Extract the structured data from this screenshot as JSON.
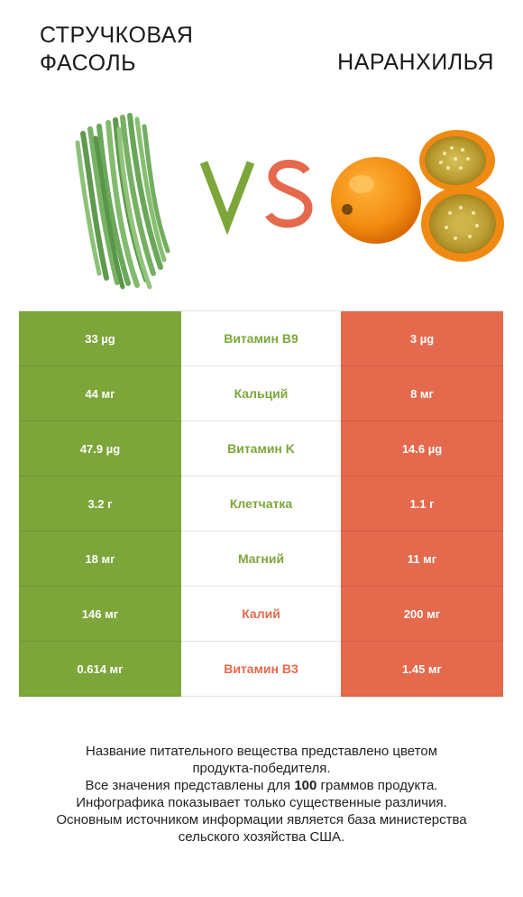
{
  "header": {
    "left_title_line1": "СТРУЧКОВАЯ",
    "left_title_line2": "ФАСОЛЬ",
    "right_title": "НАРАНХИЛЬЯ",
    "vs_label": "VS"
  },
  "colors": {
    "left_product": "#7da63a",
    "right_product": "#e5694c",
    "vs_v": "#7da63a",
    "vs_s": "#e5694c"
  },
  "rows": [
    {
      "left": "33 µg",
      "nutrient": "Витамин B9",
      "right": "3 µg",
      "winner": "left"
    },
    {
      "left": "44 мг",
      "nutrient": "Кальций",
      "right": "8 мг",
      "winner": "left"
    },
    {
      "left": "47.9 µg",
      "nutrient": "Витамин K",
      "right": "14.6 µg",
      "winner": "left"
    },
    {
      "left": "3.2 г",
      "nutrient": "Клетчатка",
      "right": "1.1 г",
      "winner": "left"
    },
    {
      "left": "18 мг",
      "nutrient": "Магний",
      "right": "11 мг",
      "winner": "left"
    },
    {
      "left": "146 мг",
      "nutrient": "Калий",
      "right": "200 мг",
      "winner": "right"
    },
    {
      "left": "0.614 мг",
      "nutrient": "Витамин B3",
      "right": "1.45 мг",
      "winner": "right"
    }
  ],
  "footer": {
    "line1": "Название питательного вещества представлено цветом",
    "line2": "продукта-победителя.",
    "line3_pre": "Все значения представлены для ",
    "line3_bold": "100",
    "line3_post": " граммов продукта.",
    "line4": "Инфографика показывает только существенные различия.",
    "line5": "Основным источником информации является база министерства",
    "line6": "сельского хозяйства США."
  }
}
